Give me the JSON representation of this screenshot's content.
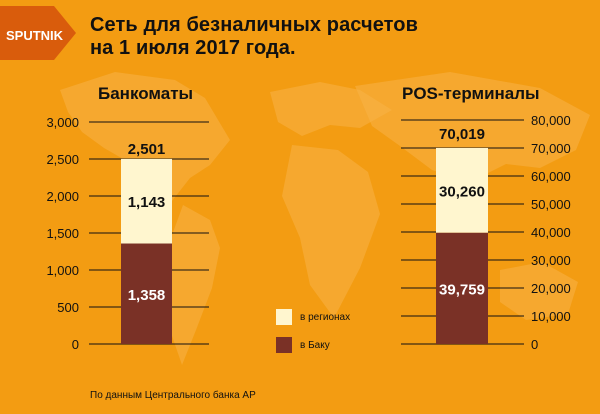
{
  "title": "Сеть для безналичных расчетов на 1 июля 2017 года.",
  "logo_text": "SPUTNIK",
  "colors": {
    "background": "#f39c12",
    "map": "#f7b247",
    "regions": "#fff6cf",
    "baku": "#7a3126",
    "text": "#111111"
  },
  "legend": {
    "items": [
      {
        "label": "в регионах",
        "color": "#fff6cf"
      },
      {
        "label": "в Баку",
        "color": "#7a3126"
      }
    ]
  },
  "footnote": "По данным Центрального банка АР",
  "chart_data": [
    {
      "type": "bar",
      "title": "Банкоматы",
      "stacked": true,
      "ylim": [
        0,
        3000
      ],
      "yticks": [
        0,
        500,
        1000,
        1500,
        2000,
        2500,
        3000
      ],
      "ytick_labels": [
        "0",
        "500",
        "1,000",
        "1,500",
        "2,000",
        "2,500",
        "3,000"
      ],
      "total": 2501,
      "total_label": "2,501",
      "series": [
        {
          "name": "в Баку",
          "values": [
            1358
          ],
          "labels": [
            "1,358"
          ]
        },
        {
          "name": "в регионах",
          "values": [
            1143
          ],
          "labels": [
            "1,143"
          ]
        }
      ]
    },
    {
      "type": "bar",
      "title": "POS-терминалы",
      "stacked": true,
      "ylim": [
        0,
        80000
      ],
      "yticks": [
        0,
        10000,
        20000,
        30000,
        40000,
        50000,
        60000,
        70000,
        80000
      ],
      "ytick_labels": [
        "0",
        "10,000",
        "20,000",
        "30,000",
        "40,000",
        "50,000",
        "60,000",
        "70,000",
        "80,000"
      ],
      "total": 70019,
      "total_label": "70,019",
      "series": [
        {
          "name": "в Баку",
          "values": [
            39759
          ],
          "labels": [
            "39,759"
          ]
        },
        {
          "name": "в регионах",
          "values": [
            30260
          ],
          "labels": [
            "30,260"
          ]
        }
      ]
    }
  ]
}
